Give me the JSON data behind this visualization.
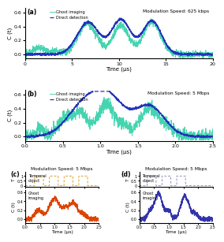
{
  "title_a": "Modulation Speed: 625 kbps",
  "title_b": "Modulation Speed: 5 Mbps",
  "title_c": "Modulation Speed: 5 Mbps",
  "title_d": "Modulation Speed: 5 Mbps",
  "xlabel_time": "Time (μs)",
  "ylabel_C": "C (t)",
  "ylabel_T": "T",
  "legend_ghost": "Ghost imaging",
  "legend_direct": "Direct detection",
  "label_temporal": "Temporal\nobject",
  "label_ghost_imaging": "Ghost\nimaging",
  "color_ghost": "#45D4B0",
  "color_direct": "#2233BB",
  "color_orange": "#DD4400",
  "color_purple": "#3333AA",
  "color_temporal_c": "#DDA020",
  "color_temporal_d": "#9090BB",
  "background": "#FFFFFF"
}
